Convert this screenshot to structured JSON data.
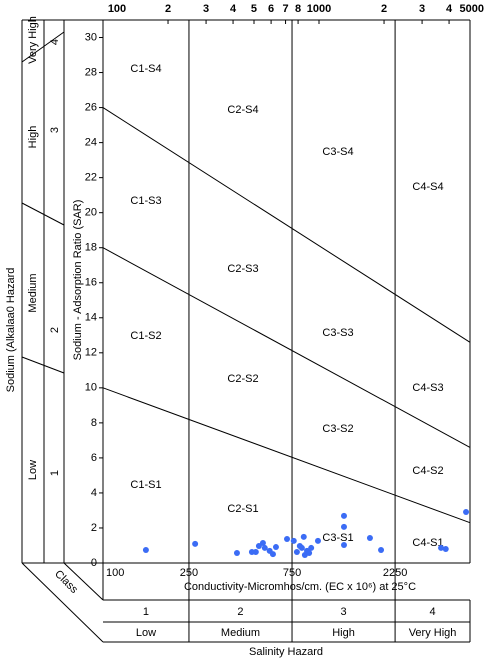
{
  "chart_data": {
    "type": "scatter",
    "x_label": "Conductivity-Micromhos/cm. (EC x 10⁶) at 25°C",
    "y_label": "Sodium - Adsorption Ratio (SAR)",
    "sodium_hazard_label": "Sodium (Alkalaa0 Hazard",
    "xscale": "log",
    "xlim": [
      100,
      5000
    ],
    "ylim": [
      0,
      31
    ],
    "xticks": [
      100,
      250,
      750,
      2250
    ],
    "xticks_top": [
      100,
      {
        "value": 200,
        "label": "2"
      },
      {
        "value": 300,
        "label": "3"
      },
      {
        "value": 400,
        "label": "4"
      },
      {
        "value": 500,
        "label": "5"
      },
      {
        "value": 600,
        "label": "6"
      },
      {
        "value": 700,
        "label": "7"
      },
      {
        "value": 800,
        "label": "8"
      },
      1000,
      {
        "value": 2000,
        "label": "2"
      },
      {
        "value": 3000,
        "label": "3"
      },
      {
        "value": 4000,
        "label": "4"
      },
      5000
    ],
    "yticks": [
      0,
      2,
      4,
      6,
      8,
      10,
      12,
      14,
      16,
      18,
      20,
      22,
      24,
      26,
      28,
      30
    ],
    "boundaries": [
      {
        "x": [
          100,
          5000
        ],
        "y": [
          26,
          12.6
        ]
      },
      {
        "x": [
          100,
          5000
        ],
        "y": [
          18,
          6.6
        ]
      },
      {
        "x": [
          100,
          5000
        ],
        "y": [
          10,
          2.3
        ]
      }
    ],
    "region_labels": [
      "C1-S4",
      "C2-S4",
      "C3-S4",
      "C4-S4",
      "C1-S3",
      "C2-S3",
      "C3-S3",
      "C4-S3",
      "C1-S2",
      "C2-S2",
      "C3-S2",
      "C4-S2",
      "C1-S1",
      "C2-S1",
      "C3-S1",
      "C4-S1"
    ],
    "sodium_classes": {
      "numbers": [
        "1",
        "2",
        "3",
        "4"
      ],
      "names": [
        "Low",
        "Medium",
        "High",
        "Very High"
      ]
    },
    "salinity_classes": {
      "title": "Class",
      "numbers": [
        "1",
        "2",
        "3",
        "4"
      ],
      "names": [
        "Low",
        "Medium",
        "High",
        "Very High"
      ],
      "label": "Salinity Hazard"
    },
    "series": [
      {
        "color": "#3b6cf5",
        "x": [
          158,
          267,
          417,
          489,
          510,
          527,
          550,
          561,
          591,
          612,
          632,
          711,
          764,
          790,
          815,
          833,
          850,
          860,
          880,
          900,
          920,
          989,
          1305,
          1305,
          1305,
          1721,
          1937,
          3672,
          3861,
          4793
        ],
        "values": [
          0.74,
          1.09,
          0.57,
          0.63,
          0.63,
          0.97,
          1.14,
          0.86,
          0.69,
          0.51,
          0.91,
          1.37,
          1.26,
          0.63,
          0.97,
          0.86,
          1.49,
          0.46,
          0.69,
          0.57,
          0.86,
          1.26,
          2.69,
          2.06,
          1.03,
          1.43,
          0.74,
          0.86,
          0.8,
          2.91
        ]
      }
    ]
  }
}
